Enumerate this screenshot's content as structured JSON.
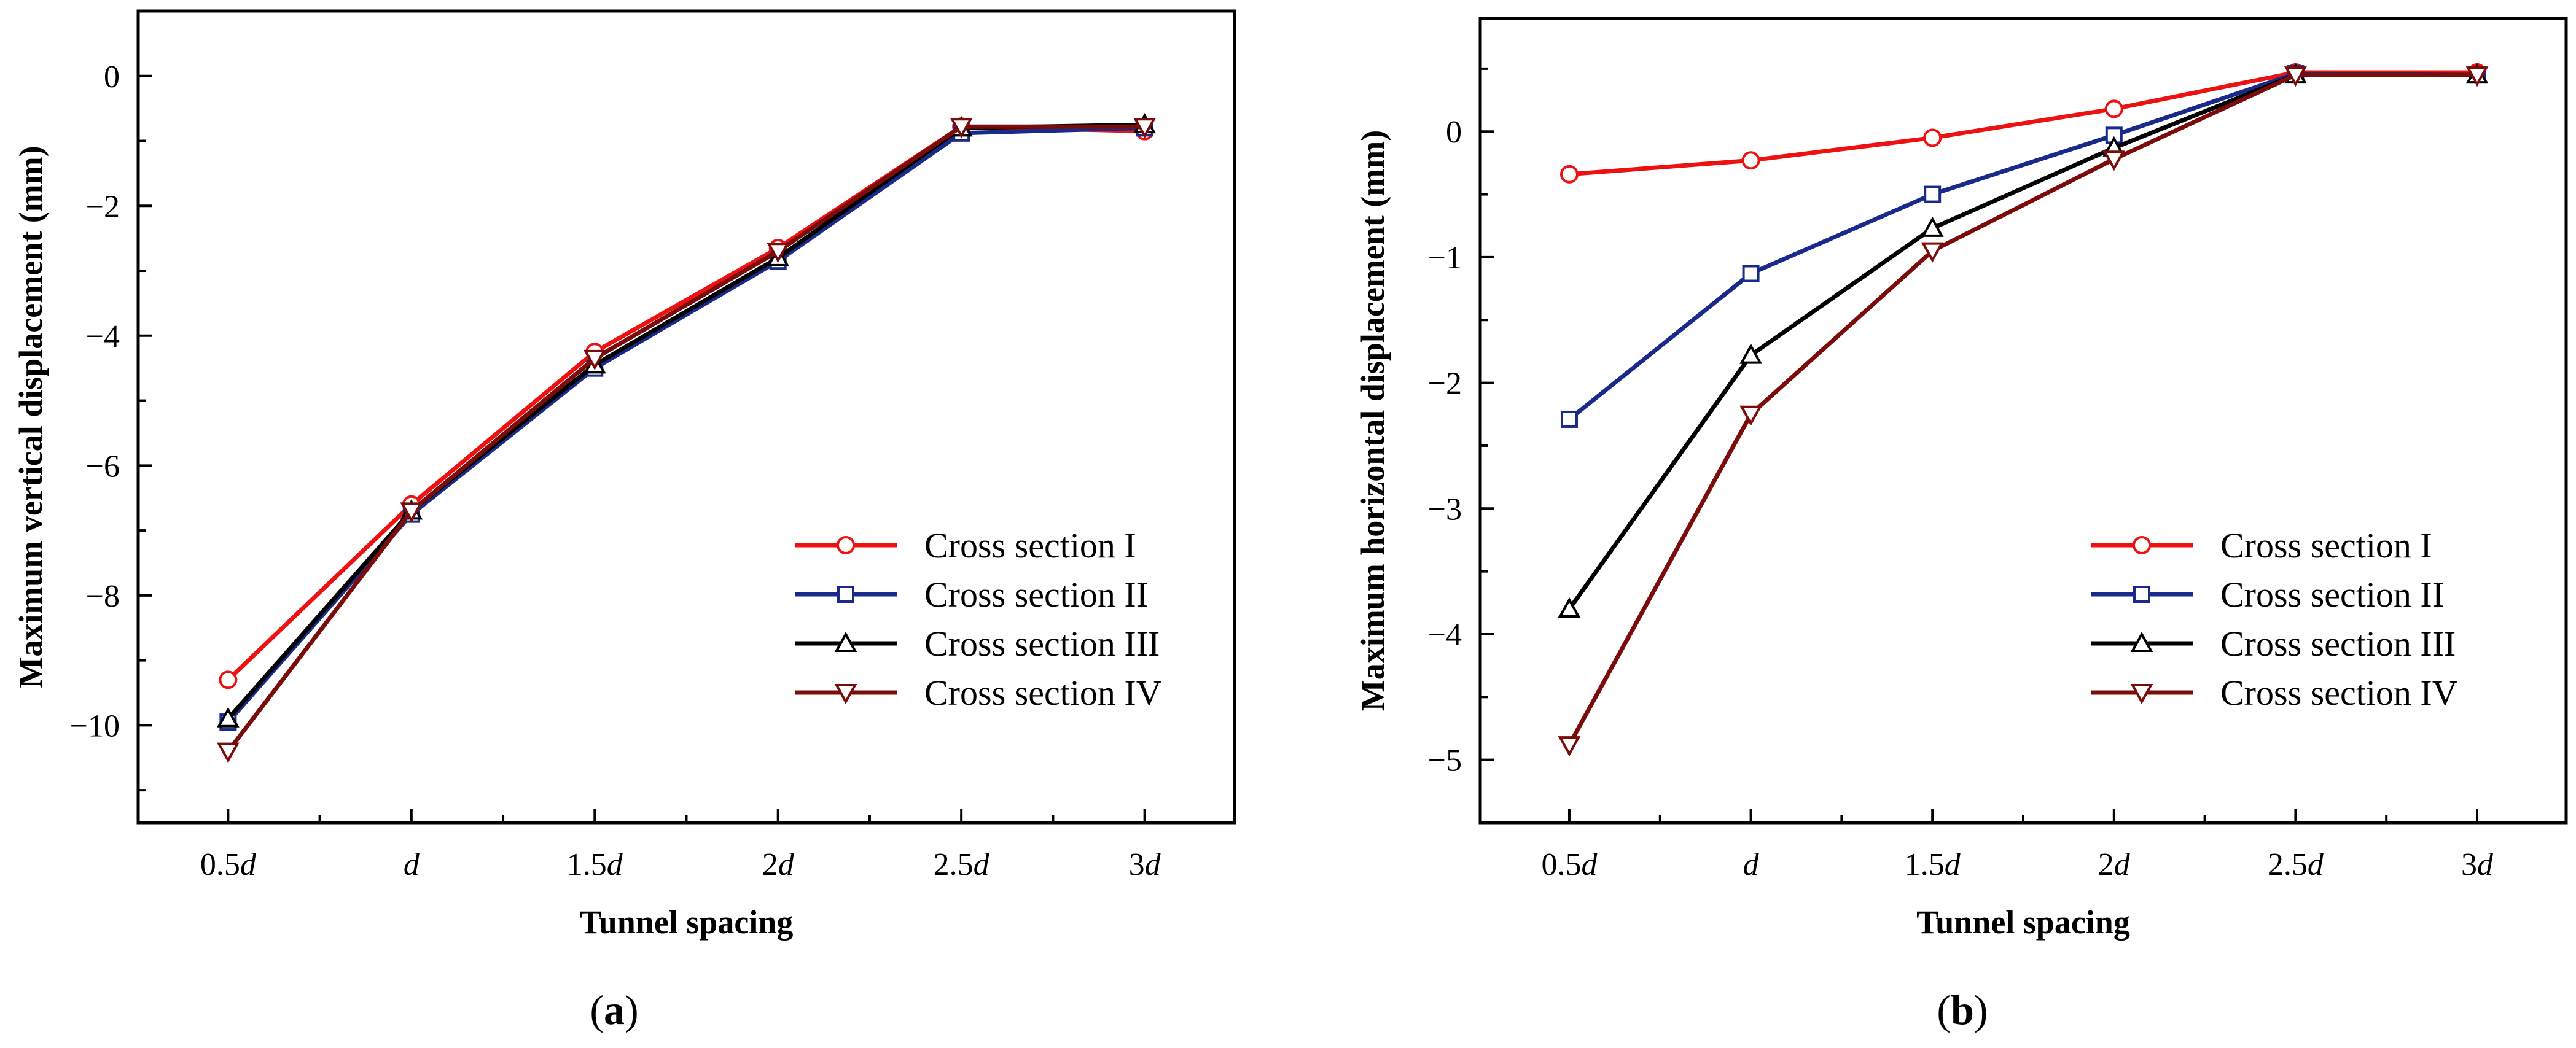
{
  "chart_data": [
    {
      "type": "line",
      "panel_label": "a",
      "title": "",
      "xlabel": "Tunnel spacing",
      "ylabel": "Maximum vertical displacement (mm)",
      "categories": [
        "0.5d",
        "d",
        "1.5d",
        "2d",
        "2.5d",
        "3d"
      ],
      "ylim": [
        -11.5,
        1.0
      ],
      "yticks": [
        0,
        -2,
        -4,
        -6,
        -8,
        -10
      ],
      "grid": false,
      "legend_position": "bottom-right",
      "series": [
        {
          "name": "Cross section I",
          "values": [
            -9.3,
            -6.6,
            -4.25,
            -2.65,
            -0.78,
            -0.85
          ],
          "color": "#ee1111",
          "marker": "circle"
        },
        {
          "name": "Cross section II",
          "values": [
            -9.95,
            -6.75,
            -4.5,
            -2.85,
            -0.88,
            -0.8
          ],
          "color": "#1a2a8a",
          "marker": "square"
        },
        {
          "name": "Cross section III",
          "values": [
            -9.9,
            -6.7,
            -4.45,
            -2.8,
            -0.8,
            -0.75
          ],
          "color": "#000000",
          "marker": "triangle-up"
        },
        {
          "name": "Cross section IV",
          "values": [
            -10.4,
            -6.7,
            -4.35,
            -2.7,
            -0.78,
            -0.78
          ],
          "color": "#7a0c0c",
          "marker": "triangle-down"
        }
      ]
    },
    {
      "type": "line",
      "panel_label": "b",
      "title": "",
      "xlabel": "Tunnel spacing",
      "ylabel": "Maximum horizontal displacement (mm)",
      "categories": [
        "0.5d",
        "d",
        "1.5d",
        "2d",
        "2.5d",
        "3d"
      ],
      "ylim": [
        -5.5,
        0.9
      ],
      "yticks": [
        0,
        -1,
        -2,
        -3,
        -4,
        -5
      ],
      "grid": false,
      "legend_position": "bottom-right",
      "series": [
        {
          "name": "Cross section I",
          "values": [
            -0.34,
            -0.23,
            -0.05,
            0.18,
            0.47,
            0.47
          ],
          "color": "#ee1111",
          "marker": "circle"
        },
        {
          "name": "Cross section II",
          "values": [
            -2.29,
            -1.13,
            -0.5,
            -0.03,
            0.46,
            0.45
          ],
          "color": "#1a2a8a",
          "marker": "square"
        },
        {
          "name": "Cross section III",
          "values": [
            -3.8,
            -1.78,
            -0.77,
            -0.13,
            0.45,
            0.45
          ],
          "color": "#000000",
          "marker": "triangle-up"
        },
        {
          "name": "Cross section IV",
          "values": [
            -4.88,
            -2.25,
            -0.95,
            -0.22,
            0.45,
            0.45
          ],
          "color": "#7a0c0c",
          "marker": "triangle-down"
        }
      ]
    }
  ]
}
